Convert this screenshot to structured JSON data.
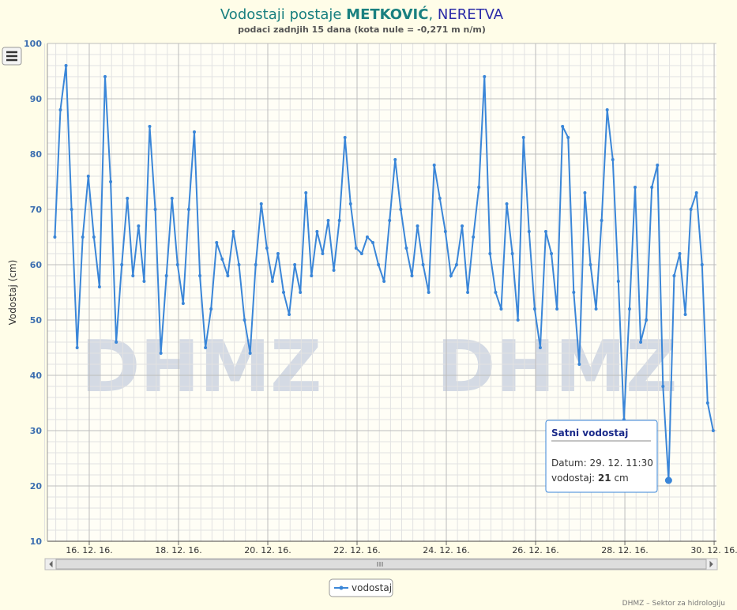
{
  "chart_data": {
    "type": "line",
    "title_parts": [
      "Vodostaji postaje ",
      "METKOVIĆ",
      ", ",
      "NERETVA"
    ],
    "subtitle": "podaci zadnjih 15 dana (kota nule = -0,271 m n/m)",
    "y_label": "Vodostaj (cm)",
    "watermark": "DHMZ",
    "credits": "DHMZ – Sektor za hidrologiju",
    "tooltip": {
      "title": "Satni vodostaj",
      "date_label": "Datum:",
      "date": "29. 12. 11:30",
      "value_label": "vodostaj:",
      "value": 21,
      "unit": "cm"
    },
    "x": [
      "2016-12-15T17:30",
      "2016-12-15T20:30",
      "2016-12-15T23:30",
      "2016-12-16T02:30",
      "2016-12-16T05:30",
      "2016-12-16T08:30",
      "2016-12-16T11:30",
      "2016-12-16T14:30",
      "2016-12-16T17:30",
      "2016-12-16T20:30",
      "2016-12-16T23:30",
      "2016-12-17T02:30",
      "2016-12-17T05:30",
      "2016-12-17T08:30",
      "2016-12-17T11:30",
      "2016-12-17T14:30",
      "2016-12-17T17:30",
      "2016-12-17T20:30",
      "2016-12-17T23:30",
      "2016-12-18T02:30",
      "2016-12-18T05:30",
      "2016-12-18T08:30",
      "2016-12-18T11:30",
      "2016-12-18T14:30",
      "2016-12-18T17:30",
      "2016-12-18T20:30",
      "2016-12-18T23:30",
      "2016-12-19T02:30",
      "2016-12-19T05:30",
      "2016-12-19T08:30",
      "2016-12-19T11:30",
      "2016-12-19T14:30",
      "2016-12-19T17:30",
      "2016-12-19T20:30",
      "2016-12-19T23:30",
      "2016-12-20T02:30",
      "2016-12-20T05:30",
      "2016-12-20T08:30",
      "2016-12-20T11:30",
      "2016-12-20T14:30",
      "2016-12-20T17:30",
      "2016-12-20T20:30",
      "2016-12-20T23:30",
      "2016-12-21T02:30",
      "2016-12-21T05:30",
      "2016-12-21T08:30",
      "2016-12-21T11:30",
      "2016-12-21T14:30",
      "2016-12-21T17:30",
      "2016-12-21T20:30",
      "2016-12-21T23:30",
      "2016-12-22T02:30",
      "2016-12-22T05:30",
      "2016-12-22T08:30",
      "2016-12-22T11:30",
      "2016-12-22T14:30",
      "2016-12-22T17:30",
      "2016-12-22T20:30",
      "2016-12-22T23:30",
      "2016-12-23T02:30",
      "2016-12-23T05:30",
      "2016-12-23T08:30",
      "2016-12-23T11:30",
      "2016-12-23T14:30",
      "2016-12-23T17:30",
      "2016-12-23T20:30",
      "2016-12-23T23:30",
      "2016-12-24T02:30",
      "2016-12-24T05:30",
      "2016-12-24T08:30",
      "2016-12-24T11:30",
      "2016-12-24T14:30",
      "2016-12-24T17:30",
      "2016-12-24T20:30",
      "2016-12-24T23:30",
      "2016-12-25T02:30",
      "2016-12-25T05:30",
      "2016-12-25T08:30",
      "2016-12-25T11:30",
      "2016-12-25T14:30",
      "2016-12-25T17:30",
      "2016-12-25T20:30",
      "2016-12-25T23:30",
      "2016-12-26T02:30",
      "2016-12-26T05:30",
      "2016-12-26T08:30",
      "2016-12-26T11:30",
      "2016-12-26T14:30",
      "2016-12-26T17:30",
      "2016-12-26T20:30",
      "2016-12-26T23:30",
      "2016-12-27T02:30",
      "2016-12-27T05:30",
      "2016-12-27T08:30",
      "2016-12-27T11:30",
      "2016-12-27T14:30",
      "2016-12-27T17:30",
      "2016-12-27T20:30",
      "2016-12-27T23:30",
      "2016-12-28T02:30",
      "2016-12-28T05:30",
      "2016-12-28T08:30",
      "2016-12-28T11:30",
      "2016-12-28T14:30",
      "2016-12-28T17:30",
      "2016-12-28T20:30",
      "2016-12-28T23:30",
      "2016-12-29T02:30",
      "2016-12-29T05:30",
      "2016-12-29T08:30",
      "2016-12-29T11:30",
      "2016-12-29T14:30",
      "2016-12-29T17:30",
      "2016-12-29T20:30",
      "2016-12-29T23:30",
      "2016-12-30T02:30",
      "2016-12-30T05:30",
      "2016-12-30T08:30",
      "2016-12-30T11:30"
    ],
    "series": [
      {
        "name": "vodostaj",
        "color": "#3a86d8",
        "values": [
          65,
          88,
          96,
          70,
          45,
          65,
          76,
          65,
          56,
          94,
          75,
          46,
          60,
          72,
          58,
          67,
          57,
          85,
          70,
          44,
          58,
          72,
          60,
          53,
          70,
          84,
          58,
          45,
          52,
          64,
          61,
          58,
          66,
          60,
          50,
          44,
          60,
          71,
          63,
          57,
          62,
          55,
          51,
          60,
          55,
          73,
          58,
          66,
          62,
          68,
          59,
          68,
          83,
          71,
          63,
          62,
          65,
          64,
          60,
          57,
          68,
          79,
          70,
          63,
          58,
          67,
          60,
          55,
          78,
          72,
          66,
          58,
          60,
          67,
          55,
          65,
          74,
          94,
          62,
          55,
          52,
          71,
          62,
          50,
          83,
          66,
          52,
          45,
          66,
          62,
          52,
          85,
          83,
          55,
          42,
          73,
          60,
          52,
          68,
          88,
          79,
          57,
          32,
          52,
          74,
          46,
          50,
          74,
          78,
          38,
          21,
          58,
          62,
          51,
          70,
          73,
          60,
          35,
          30
        ]
      }
    ],
    "xlim": [
      "2016-12-15T13:30",
      "2016-12-30T13:15"
    ],
    "xticks": [
      {
        "value": "2016-12-16T12:00",
        "label": "16. 12. 16."
      },
      {
        "value": "2016-12-18T12:00",
        "label": "18. 12. 16."
      },
      {
        "value": "2016-12-20T12:00",
        "label": "20. 12. 16."
      },
      {
        "value": "2016-12-22T12:00",
        "label": "22. 12. 16."
      },
      {
        "value": "2016-12-24T12:00",
        "label": "24. 12. 16."
      },
      {
        "value": "2016-12-26T12:00",
        "label": "26. 12. 16."
      },
      {
        "value": "2016-12-28T12:00",
        "label": "28. 12. 16."
      },
      {
        "value": "2016-12-30T12:00",
        "label": "30. 12. 16."
      }
    ],
    "ylim": [
      10,
      100
    ],
    "yticks": [
      10,
      20,
      30,
      40,
      50,
      60,
      70,
      80,
      90,
      100
    ],
    "grid": true
  }
}
